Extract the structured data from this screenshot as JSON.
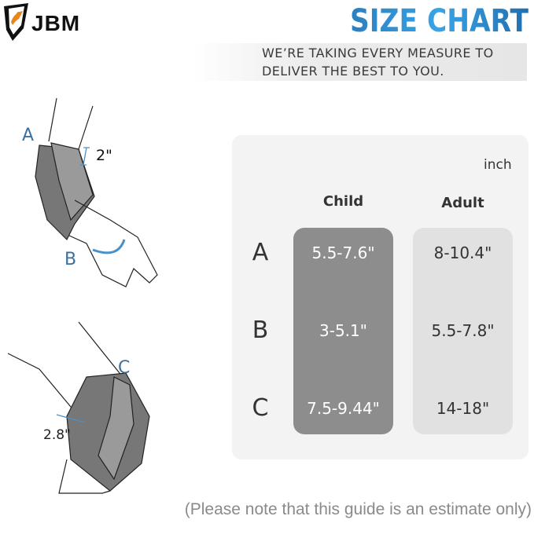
{
  "brand": {
    "logo_text": "JBM",
    "accent": "#e8861e"
  },
  "header": {
    "title": "SIZE CHART",
    "title_color": "#2f8fd6",
    "banner_lines": [
      "WE’RE TAKING EVERY MEASURE TO",
      "DELIVER THE BEST TO YOU."
    ]
  },
  "illustration": {
    "elbow": {
      "label_a": "A",
      "label_b": "B",
      "strap_width": "2\""
    },
    "knee": {
      "label_c": "C",
      "strap_width": "2.8\""
    }
  },
  "table": {
    "unit": "inch",
    "columns": [
      "Child",
      "Adult"
    ],
    "rows": [
      {
        "label": "A",
        "child": "5.5-7.6\"",
        "adult": "8-10.4\""
      },
      {
        "label": "B",
        "child": "3-5.1\"",
        "adult": "5.5-7.8\""
      },
      {
        "label": "C",
        "child": "7.5-9.44\"",
        "adult": "14-18\""
      }
    ],
    "child_color": "#8d8d8d",
    "adult_color": "#e1e1e1"
  },
  "footer": {
    "note": "(Please note that this guide is an estimate only)"
  }
}
